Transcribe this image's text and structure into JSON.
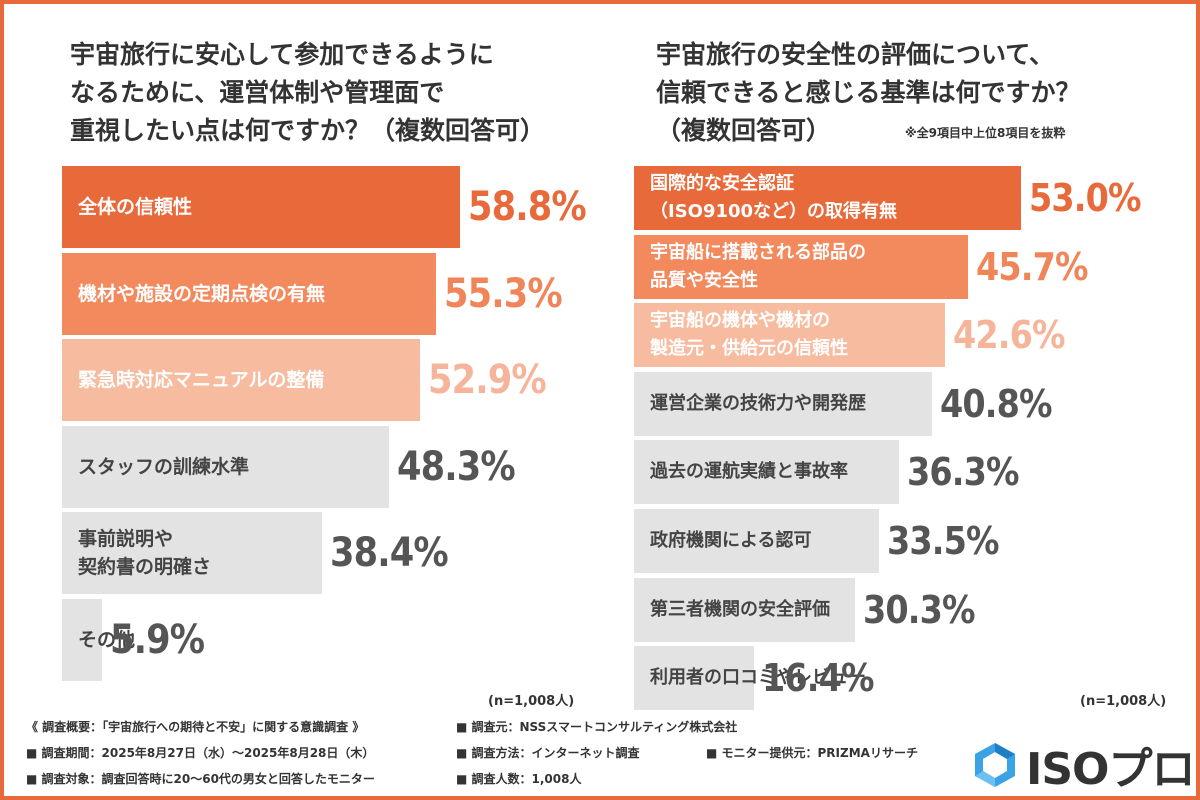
{
  "colors": {
    "border": "#e8693a",
    "bar_rank1": "#e8693a",
    "bar_rank2": "#f28a5e",
    "bar_rank3": "#f7bba0",
    "bar_other": "#e4e3e3",
    "value_rank1": "#e8693a",
    "value_rank2": "#f0855a",
    "value_rank3": "#f6b49a",
    "value_other": "#555555"
  },
  "chart_data": [
    {
      "type": "bar",
      "orientation": "horizontal",
      "title": "宇宙旅行に安心して参加できるようになるために、運営体制や管理面で重視したい点は何ですか？（複数回答可）",
      "unit": "%",
      "categories": [
        "全体の信頼性",
        "機材や施設の定期点検の有無",
        "緊急時対応マニュアルの整備",
        "スタッフの訓練水準",
        "事前説明や\n契約書の明確さ",
        "その他"
      ],
      "values": [
        58.8,
        55.3,
        52.9,
        48.3,
        38.4,
        5.9
      ],
      "value_labels": [
        "58.8%",
        "55.3%",
        "52.9%",
        "48.3%",
        "38.4%",
        "5.9%"
      ],
      "note": "(n=1,008人)"
    },
    {
      "type": "bar",
      "orientation": "horizontal",
      "title": "宇宙旅行の安全性の評価について、信頼できると感じる基準は何ですか？（複数回答可）",
      "subnote": "※全9項目中上位8項目を抜粋",
      "unit": "%",
      "categories": [
        "国際的な安全認証\n（ISO9100など）の取得有無",
        "宇宙船に搭載される部品の\n品質や安全性",
        "宇宙船の機体や機材の\n製造元・供給元の信頼性",
        "運営企業の技術力や開発歴",
        "過去の運航実績と事故率",
        "政府機関による認可",
        "第三者機関の安全評価",
        "利用者の口コミやレビュー"
      ],
      "values": [
        53.0,
        45.7,
        42.6,
        40.8,
        36.3,
        33.5,
        30.3,
        16.4
      ],
      "value_labels": [
        "53.0%",
        "45.7%",
        "42.6%",
        "40.8%",
        "36.3%",
        "33.5%",
        "30.3%",
        "16.4%"
      ],
      "note": "(n=1,008人)"
    }
  ],
  "q1": {
    "title_lines": [
      "宇宙旅行に安心して参加できるように",
      "なるために、運営体制や管理面で",
      "重視したい点は何ですか？（複数回答可）"
    ],
    "n": "(n=1,008人)"
  },
  "q2": {
    "title_lines": [
      "宇宙旅行の安全性の評価について、",
      "信頼できると感じる基準は何ですか？",
      "（複数回答可）"
    ],
    "note": "※全9項目中上位8項目を抜粋",
    "n": "(n=1,008人)"
  },
  "footer": {
    "overview": "《 調査概要：「宇宙旅行への期待と不安」に関する意識調査 》",
    "organizer": "■ 調査元：NSSスマートコンサルティング株式会社",
    "period": "■ 調査期間：2025年8月27日（水）〜2025年8月28日（木）",
    "method": "■ 調査方法：インターネット調査",
    "monitor": "■ モニター提供元：PRIZMAリサーチ",
    "target": "■ 調査対象：調査回答時に20〜60代の男女と回答したモニター",
    "count": "■ 調査人数：1,008人"
  },
  "logo": {
    "text": "ISOプロ",
    "icon": "hexagon-icon"
  }
}
